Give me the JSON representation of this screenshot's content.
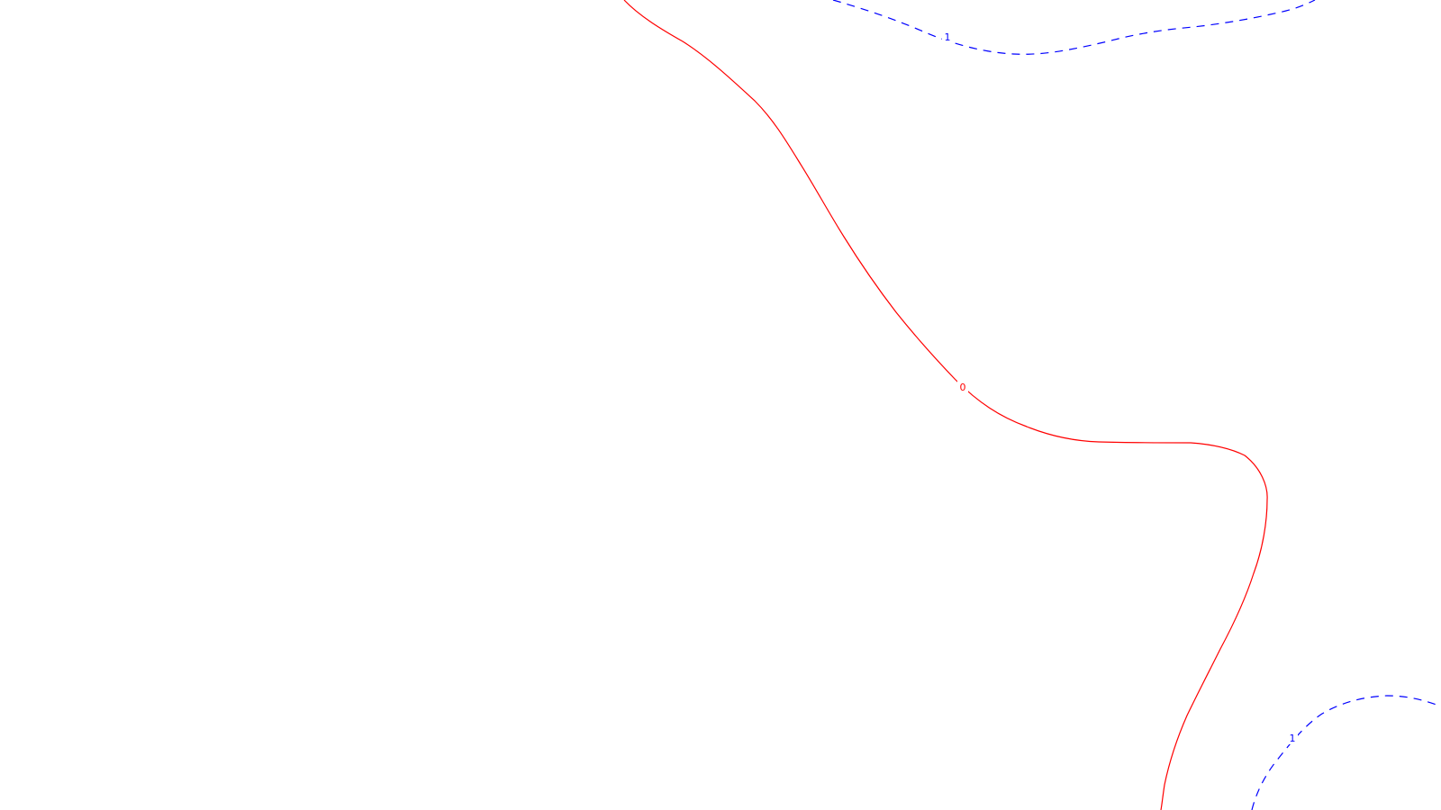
{
  "map": {
    "contours": [
      {
        "level_label": "0",
        "color": "#ff0000",
        "line_style": "solid"
      },
      {
        "level_label": "1",
        "color": "#0000ff",
        "line_style": "dashed"
      },
      {
        "level_label": "1",
        "color": "#0000ff",
        "line_style": "dashed"
      }
    ]
  }
}
